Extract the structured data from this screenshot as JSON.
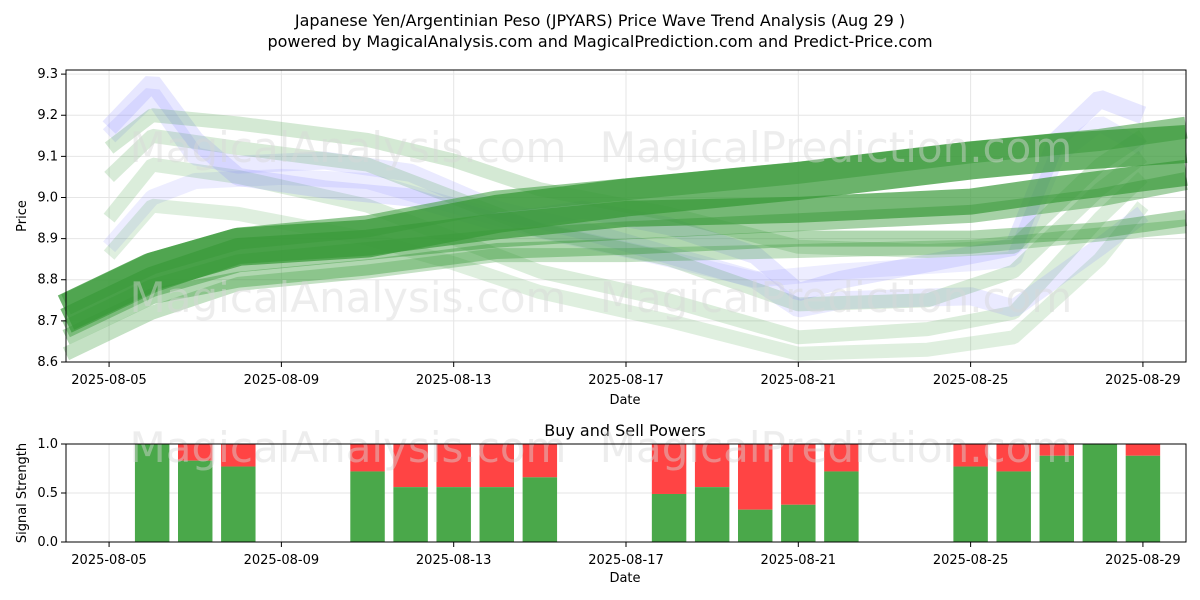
{
  "title_line1": "Japanese Yen/Argentinian Peso (JPYARS) Price Wave Trend Analysis (Aug 29 )",
  "title_line2": "powered by MagicalAnalysis.com and MagicalPrediction.com and Predict-Price.com",
  "watermarks": [
    "MagicalAnalysis.com",
    "MagicalPrediction.com"
  ],
  "colors": {
    "buy": "#4aa84a",
    "sell": "#ff4444",
    "green_band": "#3a9a3a",
    "blue_band": "#8888ff"
  },
  "chart_data": [
    {
      "type": "line",
      "name": "price-wave-chart",
      "xlabel": "Date",
      "ylabel": "Price",
      "xlim": [
        "2025-08-04",
        "2025-08-30"
      ],
      "ylim": [
        8.6,
        9.31
      ],
      "x_ticks": [
        "2025-08-05",
        "2025-08-09",
        "2025-08-13",
        "2025-08-17",
        "2025-08-21",
        "2025-08-25",
        "2025-08-29"
      ],
      "y_ticks": [
        8.6,
        8.7,
        8.8,
        8.9,
        9.0,
        9.1,
        9.2,
        9.3
      ],
      "grid": true,
      "bands": [
        {
          "color": "green",
          "opacity": 0.75,
          "width": 38,
          "points": [
            [
              "2025-08-04",
              8.72
            ],
            [
              "2025-08-06",
              8.82
            ],
            [
              "2025-08-08",
              8.88
            ],
            [
              "2025-08-11",
              8.9
            ],
            [
              "2025-08-14",
              8.96
            ],
            [
              "2025-08-17",
              9.0
            ],
            [
              "2025-08-21",
              9.04
            ],
            [
              "2025-08-25",
              9.09
            ],
            [
              "2025-08-27",
              9.11
            ],
            [
              "2025-08-30",
              9.13
            ]
          ]
        },
        {
          "color": "green",
          "opacity": 0.7,
          "width": 26,
          "points": [
            [
              "2025-08-04",
              8.7
            ],
            [
              "2025-08-06",
              8.8
            ],
            [
              "2025-08-08",
              8.87
            ],
            [
              "2025-08-11",
              8.89
            ],
            [
              "2025-08-14",
              8.93
            ],
            [
              "2025-08-17",
              8.96
            ],
            [
              "2025-08-21",
              8.97
            ],
            [
              "2025-08-25",
              8.99
            ],
            [
              "2025-08-27",
              9.02
            ],
            [
              "2025-08-30",
              9.06
            ]
          ]
        },
        {
          "color": "green",
          "opacity": 0.55,
          "width": 22,
          "points": [
            [
              "2025-08-04",
              8.74
            ],
            [
              "2025-08-06",
              8.84
            ],
            [
              "2025-08-08",
              8.9
            ],
            [
              "2025-08-11",
              8.93
            ],
            [
              "2025-08-14",
              8.99
            ],
            [
              "2025-08-17",
              9.02
            ],
            [
              "2025-08-21",
              9.06
            ],
            [
              "2025-08-25",
              9.11
            ],
            [
              "2025-08-28",
              9.14
            ],
            [
              "2025-08-30",
              9.17
            ]
          ]
        },
        {
          "color": "green",
          "opacity": 0.45,
          "width": 18,
          "points": [
            [
              "2025-08-04",
              8.68
            ],
            [
              "2025-08-06",
              8.78
            ],
            [
              "2025-08-08",
              8.84
            ],
            [
              "2025-08-11",
              8.87
            ],
            [
              "2025-08-14",
              8.9
            ],
            [
              "2025-08-17",
              8.92
            ],
            [
              "2025-08-21",
              8.94
            ],
            [
              "2025-08-25",
              8.96
            ],
            [
              "2025-08-28",
              9.0
            ],
            [
              "2025-08-30",
              9.04
            ]
          ]
        },
        {
          "color": "green",
          "opacity": 0.4,
          "width": 16,
          "points": [
            [
              "2025-08-04",
              8.66
            ],
            [
              "2025-08-06",
              8.76
            ],
            [
              "2025-08-08",
              8.8
            ],
            [
              "2025-08-11",
              8.83
            ],
            [
              "2025-08-14",
              8.87
            ],
            [
              "2025-08-17",
              8.88
            ],
            [
              "2025-08-21",
              8.9
            ],
            [
              "2025-08-25",
              8.9
            ],
            [
              "2025-08-28",
              8.92
            ],
            [
              "2025-08-30",
              8.95
            ]
          ]
        },
        {
          "color": "green",
          "opacity": 0.3,
          "width": 14,
          "points": [
            [
              "2025-08-04",
              8.62
            ],
            [
              "2025-08-06",
              8.72
            ],
            [
              "2025-08-08",
              8.79
            ],
            [
              "2025-08-11",
              8.82
            ],
            [
              "2025-08-14",
              8.86
            ],
            [
              "2025-08-17",
              8.86
            ],
            [
              "2025-08-21",
              8.87
            ],
            [
              "2025-08-25",
              8.88
            ],
            [
              "2025-08-28",
              8.91
            ],
            [
              "2025-08-30",
              8.93
            ]
          ]
        },
        {
          "color": "green",
          "opacity": 0.22,
          "width": 14,
          "points": [
            [
              "2025-08-05",
              9.12
            ],
            [
              "2025-08-06",
              9.2
            ],
            [
              "2025-08-08",
              9.18
            ],
            [
              "2025-08-11",
              9.14
            ],
            [
              "2025-08-13",
              9.09
            ],
            [
              "2025-08-15",
              9.02
            ],
            [
              "2025-08-18",
              8.96
            ],
            [
              "2025-08-21",
              8.88
            ],
            [
              "2025-08-24",
              8.87
            ],
            [
              "2025-08-26",
              8.88
            ],
            [
              "2025-08-28",
              9.08
            ],
            [
              "2025-08-29",
              9.15
            ]
          ]
        },
        {
          "color": "green",
          "opacity": 0.2,
          "width": 14,
          "points": [
            [
              "2025-08-05",
              9.05
            ],
            [
              "2025-08-06",
              9.15
            ],
            [
              "2025-08-08",
              9.12
            ],
            [
              "2025-08-11",
              9.08
            ],
            [
              "2025-08-13",
              9.0
            ],
            [
              "2025-08-15",
              8.92
            ],
            [
              "2025-08-18",
              8.85
            ],
            [
              "2025-08-21",
              8.74
            ],
            [
              "2025-08-24",
              8.75
            ],
            [
              "2025-08-26",
              8.82
            ],
            [
              "2025-08-28",
              9.02
            ],
            [
              "2025-08-29",
              9.1
            ]
          ]
        },
        {
          "color": "green",
          "opacity": 0.18,
          "width": 14,
          "points": [
            [
              "2025-08-05",
              8.95
            ],
            [
              "2025-08-06",
              9.08
            ],
            [
              "2025-08-08",
              9.05
            ],
            [
              "2025-08-11",
              8.98
            ],
            [
              "2025-08-13",
              8.9
            ],
            [
              "2025-08-15",
              8.82
            ],
            [
              "2025-08-18",
              8.75
            ],
            [
              "2025-08-21",
              8.66
            ],
            [
              "2025-08-24",
              8.68
            ],
            [
              "2025-08-26",
              8.72
            ],
            [
              "2025-08-28",
              8.95
            ],
            [
              "2025-08-29",
              9.05
            ]
          ]
        },
        {
          "color": "green",
          "opacity": 0.16,
          "width": 14,
          "points": [
            [
              "2025-08-05",
              8.86
            ],
            [
              "2025-08-06",
              8.98
            ],
            [
              "2025-08-08",
              8.96
            ],
            [
              "2025-08-11",
              8.9
            ],
            [
              "2025-08-13",
              8.84
            ],
            [
              "2025-08-15",
              8.77
            ],
            [
              "2025-08-18",
              8.7
            ],
            [
              "2025-08-21",
              8.62
            ],
            [
              "2025-08-24",
              8.63
            ],
            [
              "2025-08-26",
              8.66
            ],
            [
              "2025-08-28",
              8.85
            ],
            [
              "2025-08-29",
              8.98
            ]
          ]
        },
        {
          "color": "blue",
          "opacity": 0.2,
          "width": 18,
          "points": [
            [
              "2025-08-05",
              9.17
            ],
            [
              "2025-08-06",
              9.28
            ],
            [
              "2025-08-07",
              9.14
            ],
            [
              "2025-08-08",
              9.05
            ],
            [
              "2025-08-10",
              9.02
            ],
            [
              "2025-08-12",
              9.0
            ],
            [
              "2025-08-14",
              8.94
            ],
            [
              "2025-08-16",
              8.97
            ],
            [
              "2025-08-18",
              8.93
            ],
            [
              "2025-08-20",
              8.86
            ],
            [
              "2025-08-21",
              8.77
            ],
            [
              "2025-08-22",
              8.8
            ],
            [
              "2025-08-25",
              8.86
            ],
            [
              "2025-08-26",
              8.88
            ],
            [
              "2025-08-27",
              9.14
            ],
            [
              "2025-08-28",
              9.24
            ],
            [
              "2025-08-29",
              9.2
            ]
          ]
        },
        {
          "color": "blue",
          "opacity": 0.18,
          "width": 18,
          "points": [
            [
              "2025-08-05",
              9.15
            ],
            [
              "2025-08-06",
              9.25
            ],
            [
              "2025-08-07",
              9.1
            ],
            [
              "2025-08-08",
              9.08
            ],
            [
              "2025-08-10",
              9.09
            ],
            [
              "2025-08-12",
              9.06
            ],
            [
              "2025-08-14",
              8.97
            ],
            [
              "2025-08-16",
              8.92
            ],
            [
              "2025-08-18",
              8.86
            ],
            [
              "2025-08-20",
              8.8
            ],
            [
              "2025-08-21",
              8.73
            ],
            [
              "2025-08-22",
              8.75
            ],
            [
              "2025-08-25",
              8.76
            ],
            [
              "2025-08-26",
              8.73
            ],
            [
              "2025-08-28",
              8.88
            ],
            [
              "2025-08-29",
              8.96
            ]
          ]
        },
        {
          "color": "blue",
          "opacity": 0.15,
          "width": 16,
          "points": [
            [
              "2025-08-05",
              8.88
            ],
            [
              "2025-08-06",
              9.0
            ],
            [
              "2025-08-07",
              9.04
            ],
            [
              "2025-08-09",
              9.05
            ],
            [
              "2025-08-11",
              9.04
            ],
            [
              "2025-08-13",
              8.98
            ],
            [
              "2025-08-15",
              8.92
            ],
            [
              "2025-08-18",
              8.85
            ],
            [
              "2025-08-20",
              8.8
            ],
            [
              "2025-08-22",
              8.82
            ],
            [
              "2025-08-25",
              8.84
            ],
            [
              "2025-08-26",
              8.85
            ],
            [
              "2025-08-27",
              9.1
            ],
            [
              "2025-08-28",
              9.18
            ],
            [
              "2025-08-29",
              9.12
            ]
          ]
        }
      ]
    },
    {
      "type": "bar",
      "name": "buy-sell-powers-chart",
      "title": "Buy and Sell Powers",
      "xlabel": "Date",
      "ylabel": "Signal Strength",
      "ylim": [
        0,
        1.0
      ],
      "y_ticks": [
        0.0,
        0.5,
        1.0
      ],
      "x_ticks": [
        "2025-08-05",
        "2025-08-09",
        "2025-08-13",
        "2025-08-17",
        "2025-08-21",
        "2025-08-25",
        "2025-08-29"
      ],
      "series": [
        {
          "name": "buy",
          "color": "#4aa84a"
        },
        {
          "name": "sell",
          "color": "#ff4444"
        }
      ],
      "bars": [
        {
          "date": "2025-08-06",
          "buy": 1.0
        },
        {
          "date": "2025-08-07",
          "buy": 0.83
        },
        {
          "date": "2025-08-08",
          "buy": 0.77
        },
        {
          "date": "2025-08-11",
          "buy": 0.72
        },
        {
          "date": "2025-08-12",
          "buy": 0.56
        },
        {
          "date": "2025-08-13",
          "buy": 0.56
        },
        {
          "date": "2025-08-14",
          "buy": 0.56
        },
        {
          "date": "2025-08-15",
          "buy": 0.66
        },
        {
          "date": "2025-08-18",
          "buy": 0.49
        },
        {
          "date": "2025-08-19",
          "buy": 0.56
        },
        {
          "date": "2025-08-20",
          "buy": 0.33
        },
        {
          "date": "2025-08-21",
          "buy": 0.38
        },
        {
          "date": "2025-08-22",
          "buy": 0.72
        },
        {
          "date": "2025-08-25",
          "buy": 0.77
        },
        {
          "date": "2025-08-26",
          "buy": 0.72
        },
        {
          "date": "2025-08-27",
          "buy": 0.88
        },
        {
          "date": "2025-08-28",
          "buy": 1.0
        },
        {
          "date": "2025-08-29",
          "buy": 0.88
        }
      ]
    }
  ]
}
